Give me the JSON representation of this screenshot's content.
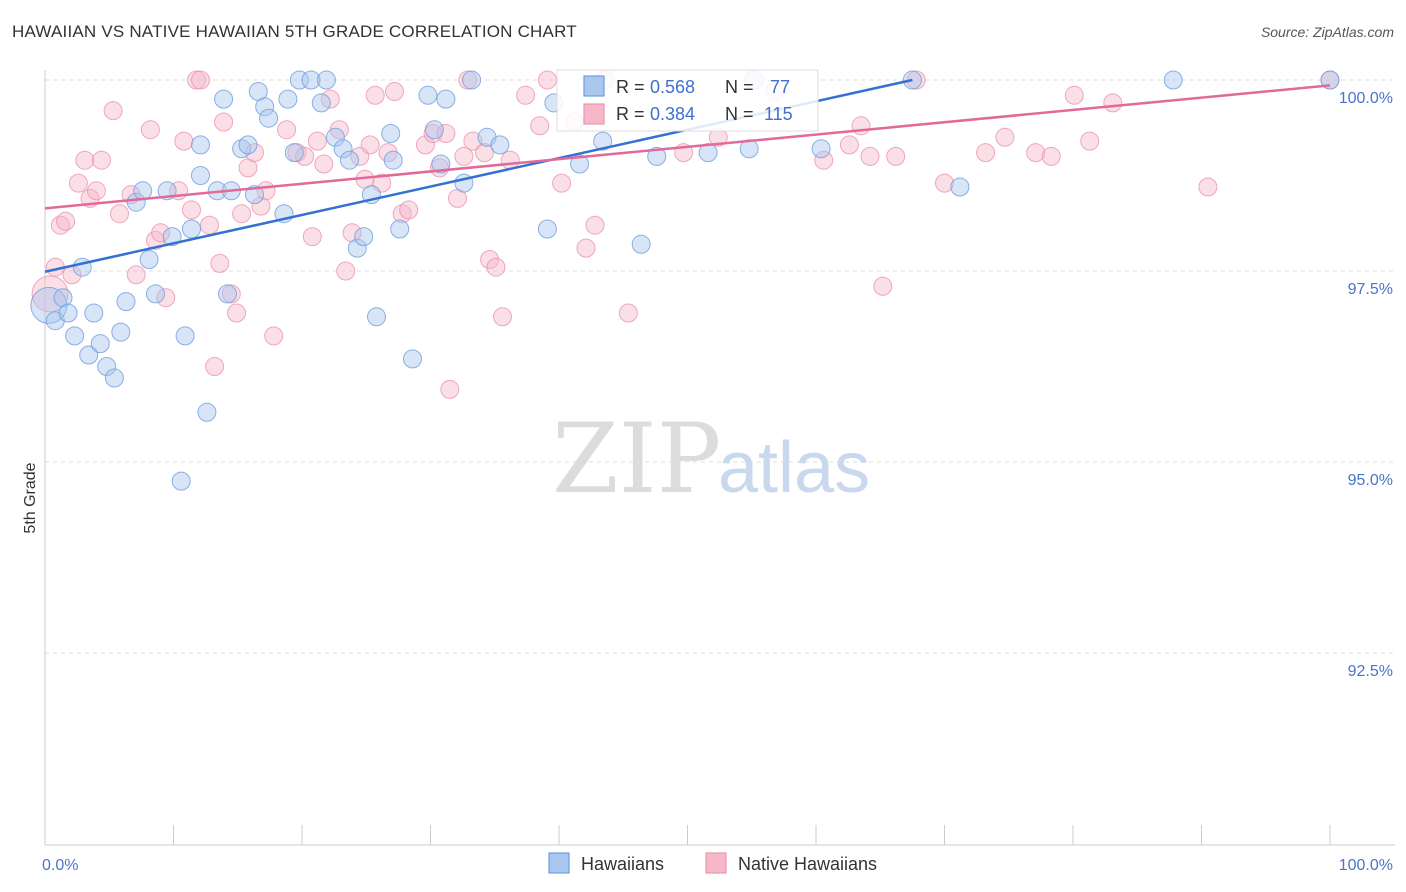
{
  "header": {
    "title": "HAWAIIAN VS NATIVE HAWAIIAN 5TH GRADE CORRELATION CHART",
    "source": "Source: ZipAtlas.com"
  },
  "watermark": {
    "zip": "ZIP",
    "atlas": "atlas"
  },
  "colors": {
    "blue_fill": "#a9c6ee",
    "blue_stroke": "#6f9ee0",
    "blue_line": "#3471d0",
    "pink_fill": "#f5b8c9",
    "pink_stroke": "#ee92ae",
    "pink_line": "#e2699a",
    "tick_text": "#4a74c9",
    "grid": "#dddddd"
  },
  "chart_data": {
    "type": "scatter",
    "title": "HAWAIIAN VS NATIVE HAWAIIAN 5TH GRADE CORRELATION CHART",
    "xlabel": "",
    "ylabel": "5th Grade",
    "xlim": [
      0,
      100
    ],
    "ylim": [
      90.0,
      100.2
    ],
    "x_tick_labels": [
      "0.0%",
      "100.0%"
    ],
    "y_ticks": [
      {
        "value": 100.0,
        "label": "100.0%"
      },
      {
        "value": 97.5,
        "label": "97.5%"
      },
      {
        "value": 95.0,
        "label": "95.0%"
      },
      {
        "value": 92.5,
        "label": "92.5%"
      }
    ],
    "legend": [
      {
        "name": "Hawaiians",
        "R": "0.568",
        "N": "77"
      },
      {
        "name": "Native Hawaiians",
        "R": "0.384",
        "N": "115"
      }
    ],
    "stat_labels": {
      "r": "R =",
      "n": "N ="
    },
    "series": [
      {
        "name": "Hawaiians",
        "trend": {
          "x": [
            0,
            67.5
          ],
          "y": [
            97.49,
            100.0
          ]
        },
        "points": [
          [
            0.3,
            97.05,
            "L"
          ],
          [
            0.8,
            96.85
          ],
          [
            1.4,
            97.15
          ],
          [
            1.8,
            96.95
          ],
          [
            2.3,
            96.65
          ],
          [
            2.9,
            97.55
          ],
          [
            3.4,
            96.4
          ],
          [
            3.8,
            96.95
          ],
          [
            4.3,
            96.55
          ],
          [
            4.8,
            96.25
          ],
          [
            5.4,
            96.1
          ],
          [
            5.9,
            96.7
          ],
          [
            6.3,
            97.1
          ],
          [
            7.1,
            98.4
          ],
          [
            7.6,
            98.55
          ],
          [
            8.1,
            97.65
          ],
          [
            8.6,
            97.2
          ],
          [
            9.5,
            98.55
          ],
          [
            9.9,
            97.95
          ],
          [
            10.6,
            94.75
          ],
          [
            10.9,
            96.65
          ],
          [
            11.4,
            98.05
          ],
          [
            12.1,
            98.75
          ],
          [
            12.1,
            99.15
          ],
          [
            12.6,
            95.65
          ],
          [
            13.4,
            98.55
          ],
          [
            13.9,
            99.75
          ],
          [
            14.2,
            97.2
          ],
          [
            14.5,
            98.55
          ],
          [
            15.3,
            99.1
          ],
          [
            15.8,
            99.15
          ],
          [
            16.3,
            98.5
          ],
          [
            16.6,
            99.85
          ],
          [
            17.1,
            99.65
          ],
          [
            17.4,
            99.5
          ],
          [
            18.6,
            98.25
          ],
          [
            18.9,
            99.75
          ],
          [
            19.4,
            99.05
          ],
          [
            19.8,
            100.0
          ],
          [
            20.7,
            100.0
          ],
          [
            21.5,
            99.7
          ],
          [
            21.9,
            100.0
          ],
          [
            22.6,
            99.25
          ],
          [
            23.2,
            99.1
          ],
          [
            23.7,
            98.95
          ],
          [
            24.3,
            97.8
          ],
          [
            24.8,
            97.95
          ],
          [
            25.4,
            98.5
          ],
          [
            25.8,
            96.9
          ],
          [
            26.9,
            99.3
          ],
          [
            27.1,
            98.95
          ],
          [
            27.6,
            98.05
          ],
          [
            28.6,
            96.35
          ],
          [
            29.8,
            99.8
          ],
          [
            30.3,
            99.35
          ],
          [
            30.8,
            98.9
          ],
          [
            31.2,
            99.75
          ],
          [
            32.6,
            98.65
          ],
          [
            33.2,
            100.0
          ],
          [
            34.4,
            99.25
          ],
          [
            35.4,
            99.15
          ],
          [
            39.1,
            98.05
          ],
          [
            39.6,
            99.7
          ],
          [
            41.6,
            98.9
          ],
          [
            43.4,
            99.2
          ],
          [
            46.4,
            97.85
          ],
          [
            47.6,
            99.0
          ],
          [
            51.6,
            99.05
          ],
          [
            54.8,
            99.1
          ],
          [
            55.2,
            100.0
          ],
          [
            60.4,
            99.1
          ],
          [
            67.5,
            100.0
          ],
          [
            71.2,
            98.6
          ],
          [
            87.8,
            100.0
          ],
          [
            100.0,
            100.0
          ]
        ]
      },
      {
        "name": "Native Hawaiians",
        "trend": {
          "x": [
            0,
            100
          ],
          "y": [
            98.32,
            99.93
          ]
        },
        "points": [
          [
            0.4,
            97.2,
            "L"
          ],
          [
            0.8,
            97.55
          ],
          [
            1.2,
            98.1
          ],
          [
            1.6,
            98.15
          ],
          [
            2.1,
            97.45
          ],
          [
            2.6,
            98.65
          ],
          [
            3.1,
            98.95
          ],
          [
            3.5,
            98.45
          ],
          [
            4.0,
            98.55
          ],
          [
            4.4,
            98.95
          ],
          [
            5.3,
            99.6
          ],
          [
            5.8,
            98.25
          ],
          [
            6.7,
            98.5
          ],
          [
            7.1,
            97.45
          ],
          [
            8.2,
            99.35
          ],
          [
            8.6,
            97.9
          ],
          [
            9.0,
            98.0
          ],
          [
            9.4,
            97.15
          ],
          [
            10.4,
            98.55
          ],
          [
            10.8,
            99.2
          ],
          [
            11.4,
            98.3
          ],
          [
            11.8,
            100.0
          ],
          [
            12.1,
            100.0
          ],
          [
            12.8,
            98.1
          ],
          [
            13.2,
            96.25
          ],
          [
            13.6,
            97.6
          ],
          [
            13.9,
            99.45
          ],
          [
            14.5,
            97.2
          ],
          [
            14.9,
            96.95
          ],
          [
            15.3,
            98.25
          ],
          [
            15.8,
            98.85
          ],
          [
            16.3,
            99.05
          ],
          [
            16.8,
            98.35
          ],
          [
            17.2,
            98.55
          ],
          [
            17.8,
            96.65
          ],
          [
            18.8,
            99.35
          ],
          [
            19.6,
            99.05
          ],
          [
            20.2,
            99.0
          ],
          [
            20.8,
            97.95
          ],
          [
            21.2,
            99.2
          ],
          [
            21.7,
            98.9
          ],
          [
            22.2,
            99.75
          ],
          [
            22.9,
            99.35
          ],
          [
            23.4,
            97.5
          ],
          [
            23.9,
            98.0
          ],
          [
            24.5,
            99.0
          ],
          [
            24.9,
            98.7
          ],
          [
            25.3,
            99.15
          ],
          [
            25.7,
            99.8
          ],
          [
            26.2,
            98.65
          ],
          [
            26.7,
            99.05
          ],
          [
            27.2,
            99.85
          ],
          [
            27.8,
            98.25
          ],
          [
            28.3,
            98.3
          ],
          [
            29.6,
            99.15
          ],
          [
            30.2,
            99.3
          ],
          [
            30.7,
            98.85
          ],
          [
            31.2,
            99.3
          ],
          [
            31.5,
            95.95
          ],
          [
            32.1,
            98.45
          ],
          [
            32.6,
            99.0
          ],
          [
            32.9,
            100.0
          ],
          [
            33.3,
            99.2
          ],
          [
            34.2,
            99.05
          ],
          [
            34.6,
            97.65
          ],
          [
            35.1,
            97.55
          ],
          [
            35.6,
            96.9
          ],
          [
            36.2,
            98.95
          ],
          [
            37.4,
            99.8
          ],
          [
            38.5,
            99.4
          ],
          [
            39.1,
            100.0
          ],
          [
            40.2,
            98.65
          ],
          [
            41.2,
            99.45
          ],
          [
            42.1,
            97.8
          ],
          [
            42.8,
            98.1
          ],
          [
            43.6,
            100.0
          ],
          [
            45.4,
            96.95
          ],
          [
            49.7,
            99.05
          ],
          [
            52.4,
            99.25
          ],
          [
            56.8,
            99.85
          ],
          [
            60.6,
            98.95
          ],
          [
            62.6,
            99.15
          ],
          [
            63.5,
            99.4
          ],
          [
            64.2,
            99.0
          ],
          [
            65.2,
            97.3
          ],
          [
            66.2,
            99.0
          ],
          [
            67.8,
            100.0
          ],
          [
            70.0,
            98.65
          ],
          [
            73.2,
            99.05
          ],
          [
            74.7,
            99.25
          ],
          [
            77.1,
            99.05
          ],
          [
            78.3,
            99.0
          ],
          [
            80.1,
            99.8
          ],
          [
            81.3,
            99.2
          ],
          [
            83.1,
            99.7
          ],
          [
            90.5,
            98.6
          ],
          [
            100.0,
            100.0
          ]
        ]
      }
    ]
  }
}
